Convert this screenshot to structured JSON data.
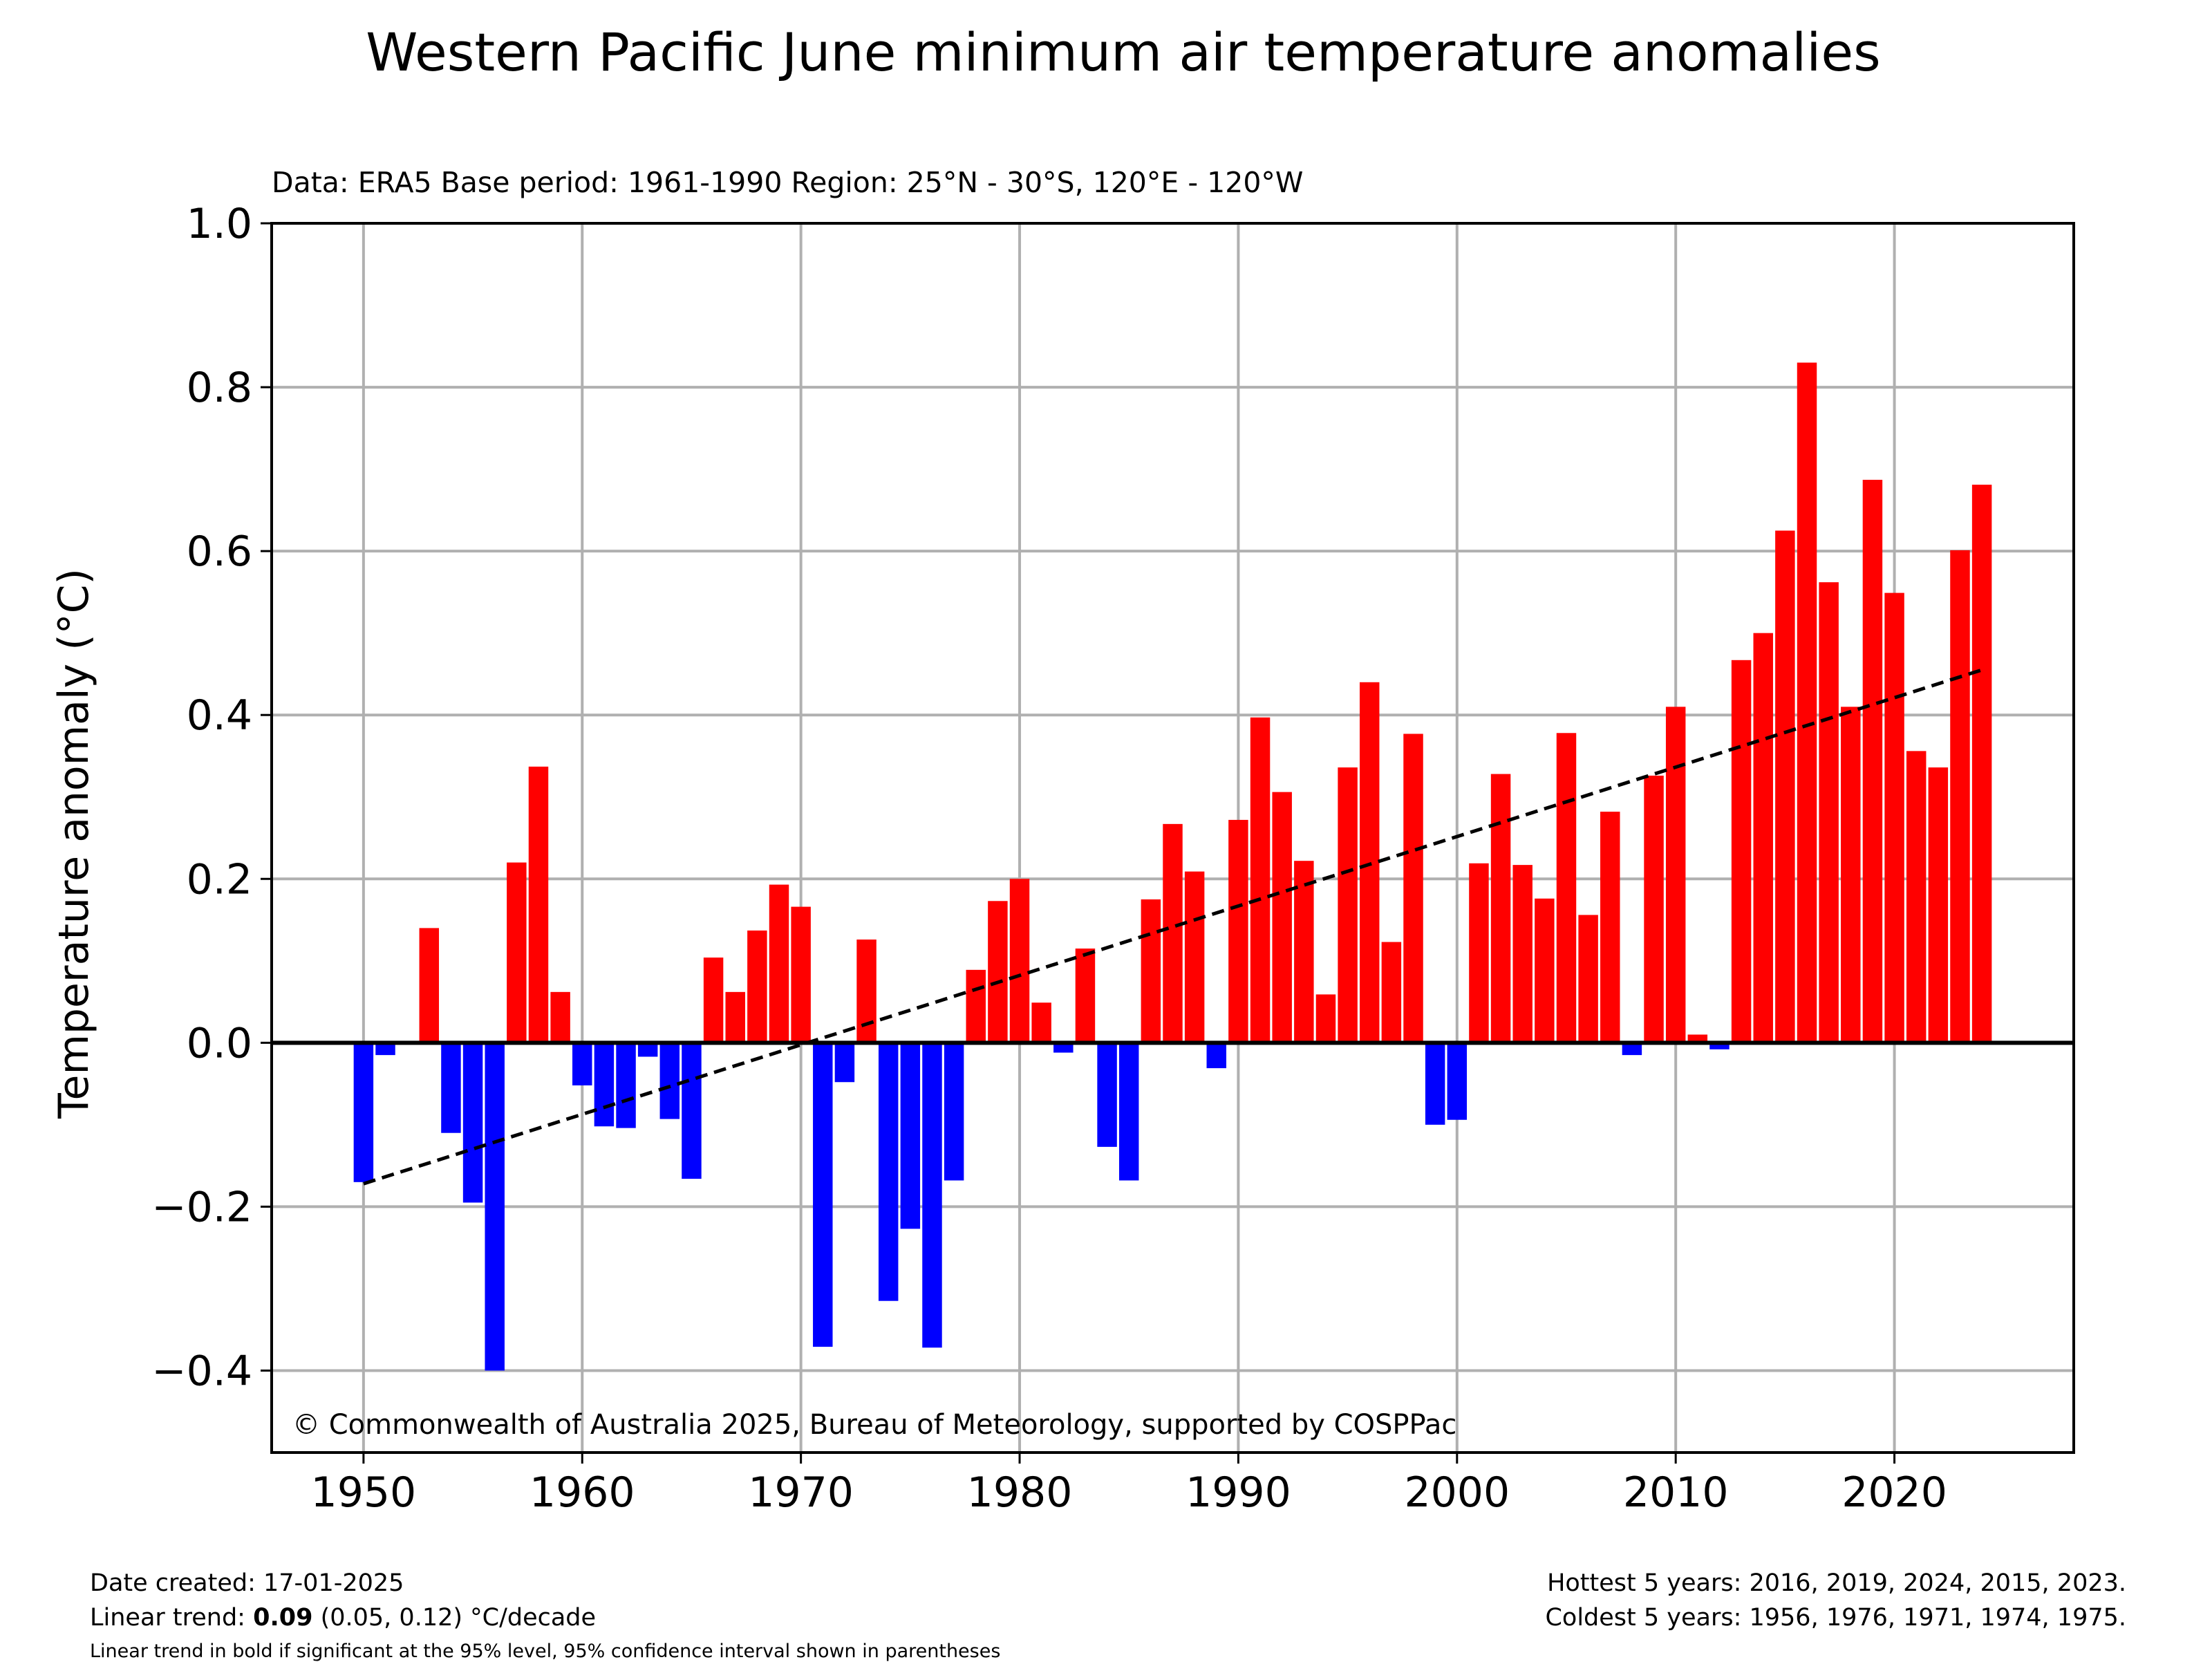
{
  "chart_data": {
    "type": "bar",
    "title": "Western Pacific June minimum air temperature anomalies",
    "subtitle": "Data: ERA5  Base period: 1961-1990  Region: 25°N - 30°S, 120°E - 120°W",
    "xlabel": "",
    "ylabel": "Temperature anomaly (°C)",
    "xlim": [
      1945.8,
      2028.2
    ],
    "ylim": [
      -0.5,
      1.0
    ],
    "xticks": [
      1950,
      1960,
      1970,
      1980,
      1990,
      2000,
      2010,
      2020
    ],
    "yticks": [
      -0.4,
      -0.2,
      0.0,
      0.2,
      0.4,
      0.6,
      0.8,
      1.0
    ],
    "grid": true,
    "positive_color": "#ff0000",
    "negative_color": "#0000ff",
    "trend_line_color": "#000000",
    "x": [
      1950,
      1951,
      1952,
      1953,
      1954,
      1955,
      1956,
      1957,
      1958,
      1959,
      1960,
      1961,
      1962,
      1963,
      1964,
      1965,
      1966,
      1967,
      1968,
      1969,
      1970,
      1971,
      1972,
      1973,
      1974,
      1975,
      1976,
      1977,
      1978,
      1979,
      1980,
      1981,
      1982,
      1983,
      1984,
      1985,
      1986,
      1987,
      1988,
      1989,
      1990,
      1991,
      1992,
      1993,
      1994,
      1995,
      1996,
      1997,
      1998,
      1999,
      2000,
      2001,
      2002,
      2003,
      2004,
      2005,
      2006,
      2007,
      2008,
      2009,
      2010,
      2011,
      2012,
      2013,
      2014,
      2015,
      2016,
      2017,
      2018,
      2019,
      2020,
      2021,
      2022,
      2023,
      2024
    ],
    "values": [
      -0.17,
      -0.015,
      0.0,
      0.14,
      -0.11,
      -0.195,
      -0.4,
      0.22,
      0.337,
      0.062,
      -0.052,
      -0.102,
      -0.104,
      -0.017,
      -0.093,
      -0.166,
      0.104,
      0.062,
      0.137,
      0.193,
      0.166,
      -0.371,
      -0.048,
      0.126,
      -0.315,
      -0.227,
      -0.372,
      -0.168,
      0.089,
      0.173,
      0.2,
      0.049,
      -0.012,
      0.115,
      -0.127,
      -0.168,
      0.175,
      0.267,
      0.209,
      -0.031,
      0.272,
      0.397,
      0.306,
      0.222,
      0.059,
      0.336,
      0.44,
      0.123,
      0.377,
      -0.1,
      -0.094,
      0.219,
      0.328,
      0.217,
      0.176,
      0.378,
      0.156,
      0.282,
      -0.015,
      0.326,
      0.41,
      0.01,
      -0.008,
      0.467,
      0.5,
      0.625,
      0.83,
      0.562,
      0.41,
      0.687,
      0.549,
      0.356,
      0.336,
      0.601,
      0.681
    ],
    "trend": {
      "x": [
        1950,
        2024
      ],
      "y": [
        -0.172,
        0.455
      ]
    },
    "annotation": "© Commonwealth of Australia 2025, Bureau of Meteorology, supported by COSPPac"
  },
  "footer": {
    "date_created": "Date created: 17-01-2025",
    "trend_prefix": "Linear trend: ",
    "trend_value": "0.09",
    "trend_suffix": " (0.05, 0.12) °C/decade",
    "trend_note": "Linear trend in bold if significant at the 95% level, 95% confidence interval shown in parentheses",
    "hottest": "Hottest 5 years: 2016, 2019, 2024, 2015, 2023.",
    "coldest": "Coldest 5 years: 1956, 1976, 1971, 1974, 1975."
  }
}
